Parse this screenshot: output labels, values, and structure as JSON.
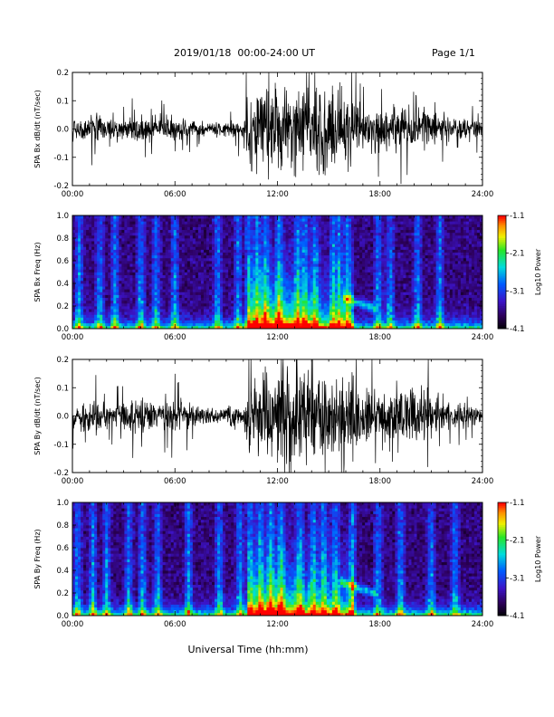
{
  "header": {
    "title": "2019/01/18  00:00-24:00 UT",
    "page": "Page 1/1"
  },
  "chart_data": [
    {
      "type": "line",
      "ylabel": "SPA Bx dB/dt (nT/sec)",
      "x_ticks": [
        "00:00",
        "06:00",
        "12:00",
        "18:00",
        "24:00"
      ],
      "y_ticks": [
        "0.2",
        "0.1",
        "0.0",
        "-0.1",
        "-0.2"
      ],
      "xlim": [
        0,
        24
      ],
      "ylim": [
        -0.2,
        0.2
      ],
      "envelope": {
        "x_hours": [
          0,
          1,
          2,
          3,
          4,
          5,
          6,
          7,
          8,
          9,
          10,
          10.5,
          11,
          12,
          13,
          14,
          15,
          16,
          17,
          18,
          19,
          20,
          21,
          22,
          23,
          24
        ],
        "amplitude": [
          0.05,
          0.06,
          0.05,
          0.04,
          0.06,
          0.05,
          0.05,
          0.04,
          0.03,
          0.03,
          0.05,
          0.2,
          0.2,
          0.2,
          0.2,
          0.19,
          0.2,
          0.17,
          0.1,
          0.09,
          0.1,
          0.09,
          0.08,
          0.06,
          0.05,
          0.04
        ]
      },
      "color": "#000000"
    },
    {
      "type": "heatmap",
      "ylabel": "SPA Bx Freq (Hz)",
      "x_ticks": [
        "00:00",
        "06:00",
        "12:00",
        "18:00",
        "24:00"
      ],
      "y_ticks": [
        "1.0",
        "0.8",
        "0.6",
        "0.4",
        "0.2",
        "0.0"
      ],
      "xlim": [
        0,
        24
      ],
      "ylim": [
        0,
        1.0
      ],
      "colorbar": {
        "label": "Log10 Power",
        "ticks": [
          "-1.1",
          "-2.1",
          "-3.1",
          "-4.1"
        ],
        "range": [
          -4.1,
          -1.1
        ]
      },
      "activity_hours": [
        0.4,
        1.6,
        2.5,
        4.0,
        4.9,
        6.0,
        8.5,
        9.7,
        10.3,
        10.8,
        11.3,
        12.1,
        13.2,
        13.6,
        14.2,
        15.3,
        15.6,
        16.1,
        17.9,
        18.6,
        20.2,
        21.5
      ],
      "band": {
        "from_hours": 15.8,
        "to_hours": 17.7,
        "freq_start": 0.28,
        "freq_end": 0.18
      }
    },
    {
      "type": "line",
      "ylabel": "SPA By dB/dt (nT/sec)",
      "x_ticks": [
        "00:00",
        "06:00",
        "12:00",
        "18:00",
        "24:00"
      ],
      "y_ticks": [
        "0.2",
        "0.1",
        "0.0",
        "-0.1",
        "-0.2"
      ],
      "xlim": [
        0,
        24
      ],
      "ylim": [
        -0.2,
        0.2
      ],
      "envelope": {
        "x_hours": [
          0,
          1,
          2,
          3,
          4,
          5,
          6,
          7,
          8,
          9,
          10,
          10.5,
          11,
          12,
          13,
          14,
          15,
          16,
          17,
          18,
          19,
          20,
          21,
          22,
          23,
          24
        ],
        "amplitude": [
          0.06,
          0.08,
          0.05,
          0.05,
          0.09,
          0.06,
          0.07,
          0.05,
          0.04,
          0.04,
          0.06,
          0.19,
          0.2,
          0.2,
          0.2,
          0.2,
          0.2,
          0.18,
          0.13,
          0.11,
          0.14,
          0.12,
          0.1,
          0.07,
          0.05,
          0.03
        ]
      },
      "color": "#000000"
    },
    {
      "type": "heatmap",
      "ylabel": "SPA By Freq (Hz)",
      "x_ticks": [
        "00:00",
        "06:00",
        "12:00",
        "18:00",
        "24:00"
      ],
      "y_ticks": [
        "1.0",
        "0.8",
        "0.6",
        "0.4",
        "0.2",
        "0.0"
      ],
      "xlim": [
        0,
        24
      ],
      "ylim": [
        0,
        1.0
      ],
      "colorbar": {
        "label": "Log10 Power",
        "ticks": [
          "-1.1",
          "-2.1",
          "-3.1",
          "-4.1"
        ],
        "range": [
          -4.1,
          -1.1
        ]
      },
      "activity_hours": [
        0.3,
        1.2,
        2.0,
        3.3,
        4.1,
        5.0,
        6.8,
        8.6,
        9.8,
        10.4,
        11.0,
        11.6,
        12.2,
        13.3,
        14.1,
        14.7,
        15.4,
        16.4,
        17.9,
        19.2,
        21.0,
        22.4
      ],
      "band": {
        "from_hours": 15.7,
        "to_hours": 17.7,
        "freq_start": 0.3,
        "freq_end": 0.2
      }
    }
  ],
  "footer": {
    "xlabel": "Universal Time (hh:mm)"
  }
}
